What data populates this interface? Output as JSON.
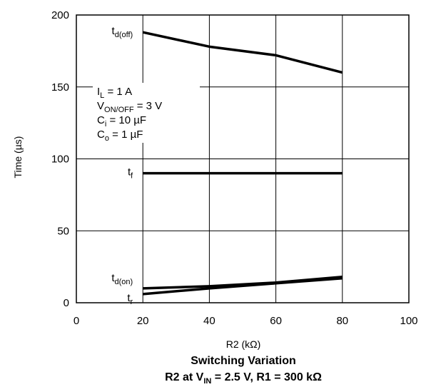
{
  "chart_data": {
    "type": "line",
    "title": "Switching Variation",
    "subtitle": {
      "prefix": "R2 at V",
      "sub": "IN",
      "suffix": " = 2.5 V, R1 = 300 kΩ"
    },
    "xlabel": "R2 (kΩ)",
    "ylabel": "Time (µs)",
    "xlim": [
      0,
      100
    ],
    "ylim": [
      0,
      200
    ],
    "xticks": [
      "0",
      "20",
      "40",
      "60",
      "80",
      "100"
    ],
    "yticks": [
      "0",
      "50",
      "100",
      "150",
      "200"
    ],
    "grid": true,
    "legend": "inline labels",
    "line_color": "#000000",
    "conditions": [
      {
        "base": "I",
        "sub": "L",
        "rest": " = 1 A"
      },
      {
        "base": "V",
        "sub": "ON/OFF",
        "rest": " = 3 V"
      },
      {
        "base": "C",
        "sub": "i",
        "rest": " = 10 µF"
      },
      {
        "base": "C",
        "sub": "o",
        "rest": " = 1 µF"
      }
    ],
    "series": [
      {
        "name": "td(off)",
        "base": "t",
        "sub": "d(off)",
        "x": [
          20,
          40,
          60,
          80
        ],
        "y": [
          188,
          178,
          172,
          160
        ]
      },
      {
        "name": "tf",
        "base": "t",
        "sub": "f",
        "x": [
          20,
          40,
          60,
          80
        ],
        "y": [
          90,
          90,
          90,
          90
        ]
      },
      {
        "name": "td(on)",
        "base": "t",
        "sub": "d(on)",
        "x": [
          20,
          40,
          60,
          80
        ],
        "y": [
          10,
          11.5,
          14,
          18
        ]
      },
      {
        "name": "tr",
        "base": "t",
        "sub": "r",
        "x": [
          20,
          40,
          60,
          80
        ],
        "y": [
          6,
          10,
          13.5,
          17
        ]
      }
    ]
  }
}
